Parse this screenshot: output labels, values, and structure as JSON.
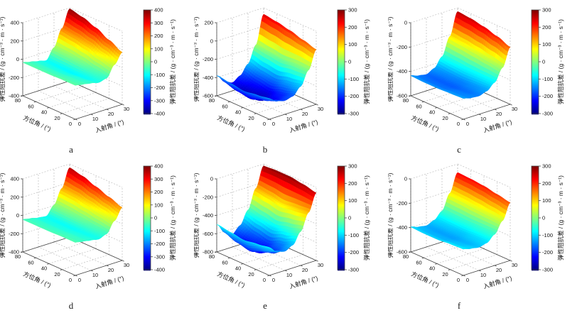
{
  "figure": {
    "background_color": "#ffffff",
    "rows": 2,
    "columns": 3
  },
  "chart_data": [
    {
      "type": "surface3d",
      "panel_label": "a",
      "colormap": "jet",
      "x_label": "入射角 / (°)",
      "y_label": "方位角 / (°)",
      "z_label": "弹性阻抗差 / (g · cm⁻³ · m · s⁻¹)",
      "colorbar_label": "弹性阻抗差 / (g · cm⁻³ · m · s⁻¹)",
      "x": [
        0,
        5,
        10,
        15,
        20,
        25,
        30
      ],
      "y": [
        0,
        20,
        40,
        60,
        80
      ],
      "x_ticks": [
        0,
        10,
        20,
        30
      ],
      "y_ticks": [
        0,
        20,
        40,
        60,
        80
      ],
      "z_ticks": [
        400,
        200,
        0,
        -200,
        -400
      ],
      "z_range": [
        -400,
        400
      ],
      "colorbar_ticks": [
        400,
        300,
        200,
        100,
        0,
        -100,
        -200,
        -300,
        -400
      ],
      "colorbar_range": [
        -400,
        400
      ],
      "z_grid": [
        [
          -30,
          -45,
          -60,
          -80,
          -60,
          60,
          170
        ],
        [
          -30,
          -50,
          -70,
          -95,
          -40,
          100,
          240
        ],
        [
          -35,
          -55,
          -80,
          -105,
          -10,
          150,
          310
        ],
        [
          -35,
          -55,
          -80,
          -100,
          10,
          180,
          360
        ],
        [
          -35,
          -55,
          -75,
          -95,
          20,
          200,
          390
        ]
      ]
    },
    {
      "type": "surface3d",
      "panel_label": "b",
      "colormap": "jet",
      "x_label": "入射角 / (°)",
      "y_label": "方位角 / (°)",
      "z_label": "弹性阻抗差 / (g · cm⁻³ · m · s⁻¹)",
      "colorbar_label": "弹性阻抗差 / (g · cm⁻³ · m · s⁻¹)",
      "x": [
        0,
        5,
        10,
        15,
        20,
        25,
        30
      ],
      "y": [
        0,
        20,
        40,
        60,
        80
      ],
      "x_ticks": [
        0,
        10,
        20,
        30
      ],
      "y_ticks": [
        0,
        20,
        40,
        60,
        80
      ],
      "z_ticks": [
        200,
        0,
        -200,
        -400,
        -600
      ],
      "z_range": [
        -600,
        200
      ],
      "colorbar_ticks": [
        300,
        200,
        100,
        0,
        -100,
        -200,
        -300
      ],
      "colorbar_range": [
        -300,
        300
      ],
      "z_grid": [
        [
          -380,
          -430,
          -450,
          -430,
          -350,
          -200,
          0
        ],
        [
          -400,
          -480,
          -510,
          -480,
          -380,
          -200,
          40
        ],
        [
          -420,
          -530,
          -570,
          -530,
          -420,
          -220,
          80
        ],
        [
          -400,
          -510,
          -550,
          -500,
          -400,
          -200,
          110
        ],
        [
          -380,
          -470,
          -510,
          -460,
          -360,
          -180,
          130
        ]
      ]
    },
    {
      "type": "surface3d",
      "panel_label": "c",
      "colormap": "jet",
      "x_label": "入射角 / (°)",
      "y_label": "方位角 / (°)",
      "z_label": "弹性阻抗差 / (g · cm⁻³ · m · s⁻¹)",
      "colorbar_label": "弹性阻抗差 / (g · cm⁻³ · m · s⁻¹)",
      "x": [
        0,
        5,
        10,
        15,
        20,
        25,
        30
      ],
      "y": [
        0,
        20,
        40,
        60,
        80
      ],
      "x_ticks": [
        0,
        10,
        20,
        30
      ],
      "y_ticks": [
        0,
        20,
        40,
        60,
        80
      ],
      "z_ticks": [
        0,
        -200,
        -400,
        -600
      ],
      "z_range": [
        -600,
        0
      ],
      "colorbar_ticks": [
        300,
        200,
        100,
        0,
        -100,
        -200,
        -300
      ],
      "colorbar_range": [
        -300,
        300
      ],
      "z_grid": [
        [
          -430,
          -445,
          -450,
          -430,
          -380,
          -280,
          -130
        ],
        [
          -435,
          -450,
          -460,
          -440,
          -380,
          -260,
          -90
        ],
        [
          -440,
          -460,
          -470,
          -450,
          -380,
          -240,
          -60
        ],
        [
          -440,
          -460,
          -470,
          -445,
          -370,
          -225,
          -40
        ],
        [
          -435,
          -455,
          -465,
          -435,
          -360,
          -215,
          -30
        ]
      ]
    },
    {
      "type": "surface3d",
      "panel_label": "d",
      "colormap": "jet",
      "x_label": "入射角 / (°)",
      "y_label": "方位角 / (°)",
      "z_label": "弹性阻抗差 / (g · cm⁻³ · m · s⁻¹)",
      "colorbar_label": "弹性阻抗差 / (g · cm⁻³ · m · s⁻¹)",
      "x": [
        0,
        5,
        10,
        15,
        20,
        25,
        30
      ],
      "y": [
        0,
        20,
        40,
        60,
        80
      ],
      "x_ticks": [
        0,
        10,
        20,
        30
      ],
      "y_ticks": [
        0,
        20,
        40,
        60,
        80
      ],
      "z_ticks": [
        400,
        200,
        0,
        -200,
        -400
      ],
      "z_range": [
        -400,
        400
      ],
      "colorbar_ticks": [
        400,
        300,
        200,
        100,
        0,
        -100,
        -200,
        -300,
        -400
      ],
      "colorbar_range": [
        -400,
        400
      ],
      "z_grid": [
        [
          -40,
          -55,
          -70,
          -85,
          -55,
          60,
          180
        ],
        [
          -40,
          -55,
          -75,
          -90,
          -40,
          90,
          230
        ],
        [
          -45,
          -60,
          -80,
          -95,
          -20,
          120,
          280
        ],
        [
          -45,
          -60,
          -80,
          -95,
          -5,
          150,
          330
        ],
        [
          -45,
          -60,
          -80,
          -90,
          5,
          160,
          360
        ]
      ]
    },
    {
      "type": "surface3d",
      "panel_label": "e",
      "colormap": "jet",
      "x_label": "入射角 / (°)",
      "y_label": "方位角 / (°)",
      "z_label": "弹性阻抗差 / (g · cm⁻³ · m · s⁻¹)",
      "colorbar_label": "弹性阻抗差 / (g · cm⁻³ · m · s⁻¹)",
      "x": [
        0,
        5,
        10,
        15,
        20,
        25,
        30
      ],
      "y": [
        0,
        20,
        40,
        60,
        80
      ],
      "x_ticks": [
        0,
        10,
        20,
        30
      ],
      "y_ticks": [
        0,
        20,
        40,
        60,
        80
      ],
      "z_ticks": [
        0,
        -200,
        -400,
        -600,
        -800
      ],
      "z_range": [
        -800,
        0
      ],
      "colorbar_ticks": [
        300,
        200,
        100,
        0,
        -100,
        -200,
        -300
      ],
      "colorbar_range": [
        -300,
        300
      ],
      "z_grid": [
        [
          -500,
          -570,
          -590,
          -550,
          -430,
          -250,
          -60
        ],
        [
          -520,
          -630,
          -670,
          -610,
          -470,
          -270,
          -30
        ],
        [
          -540,
          -690,
          -730,
          -670,
          -510,
          -290,
          -10
        ],
        [
          -520,
          -660,
          -700,
          -640,
          -480,
          -260,
          -10
        ],
        [
          -500,
          -610,
          -660,
          -590,
          -450,
          -240,
          -20
        ]
      ]
    },
    {
      "type": "surface3d",
      "panel_label": "f",
      "colormap": "jet",
      "x_label": "入射角 / (°)",
      "y_label": "方位角 / (°)",
      "z_label": "弹性阻抗差 / (g · cm⁻³ · m · s⁻¹)",
      "colorbar_label": "弹性阻抗差 / (g · cm⁻³ · m · s⁻¹)",
      "x": [
        0,
        5,
        10,
        15,
        20,
        25,
        30
      ],
      "y": [
        0,
        20,
        40,
        60,
        80
      ],
      "x_ticks": [
        0,
        10,
        20,
        30
      ],
      "y_ticks": [
        0,
        20,
        40,
        60,
        80
      ],
      "z_ticks": [
        0,
        -200,
        -400,
        -600
      ],
      "z_range": [
        -600,
        0
      ],
      "colorbar_ticks": [
        300,
        200,
        100,
        0,
        -100,
        -200,
        -300
      ],
      "colorbar_range": [
        -300,
        300
      ],
      "z_grid": [
        [
          -385,
          -400,
          -410,
          -395,
          -345,
          -255,
          -125
        ],
        [
          -390,
          -410,
          -420,
          -400,
          -350,
          -245,
          -105
        ],
        [
          -400,
          -420,
          -430,
          -410,
          -355,
          -235,
          -85
        ],
        [
          -400,
          -420,
          -430,
          -405,
          -350,
          -225,
          -75
        ],
        [
          -395,
          -415,
          -425,
          -400,
          -345,
          -220,
          -70
        ]
      ]
    }
  ]
}
